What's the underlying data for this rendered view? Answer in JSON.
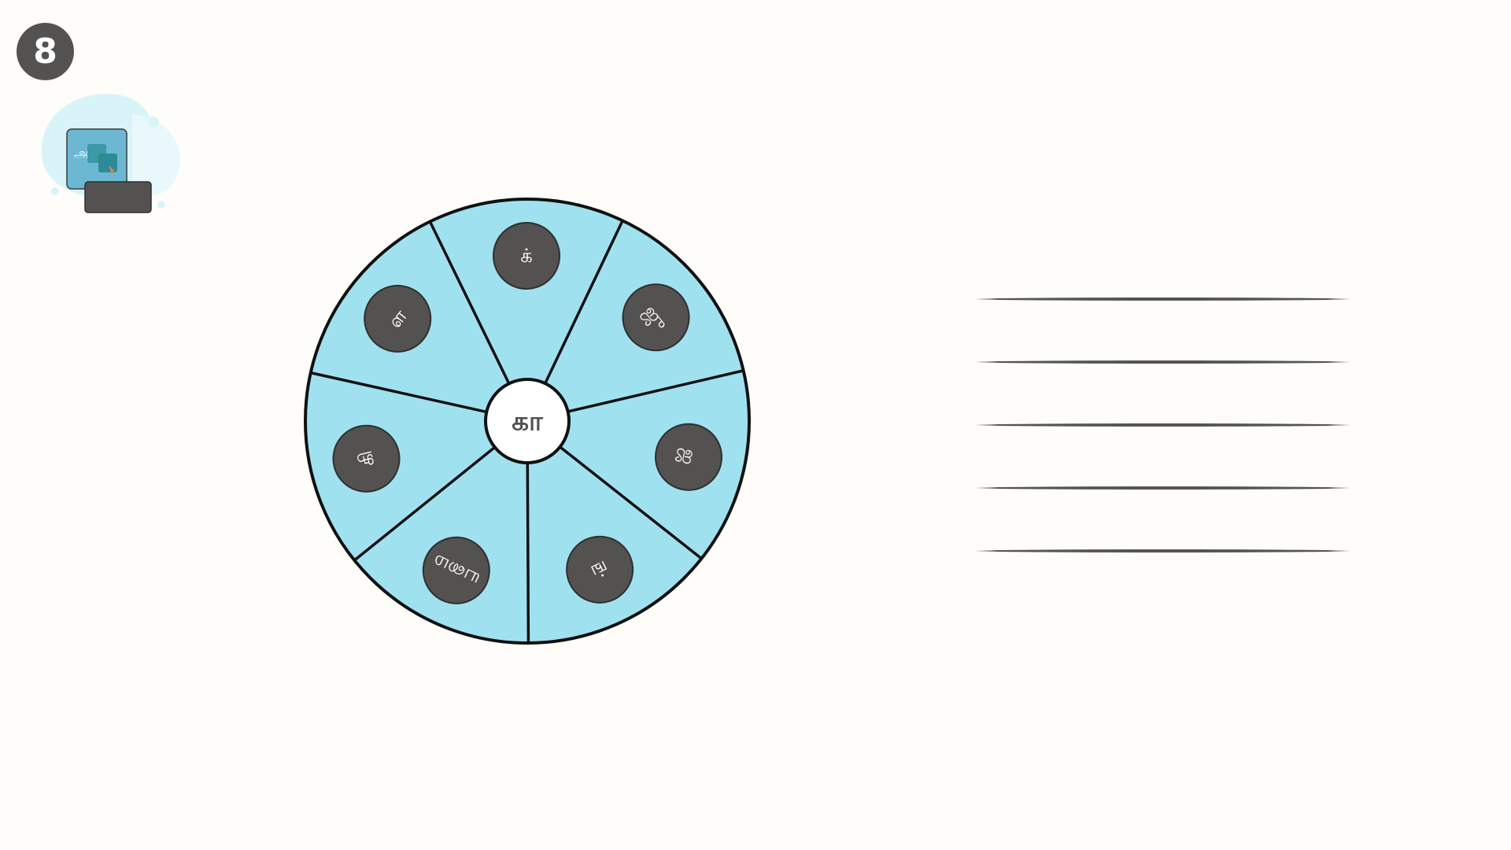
{
  "step": {
    "number": "8"
  },
  "activity_icon": {
    "name": "letter-drag-activity-icon",
    "glyph": "அ"
  },
  "wheel": {
    "center_letter": "கா",
    "segments": [
      "க்",
      "ஜு",
      "ஜ",
      "ங்",
      "யமை",
      "கி",
      "ள"
    ],
    "colors": {
      "fill": "#a0e1f0",
      "stroke": "#111111",
      "token": "#545250",
      "hub": "#ffffff"
    }
  },
  "answer_lines": {
    "count": 5
  },
  "colors": {
    "background": "#fefdf9",
    "badge": "#545250"
  }
}
